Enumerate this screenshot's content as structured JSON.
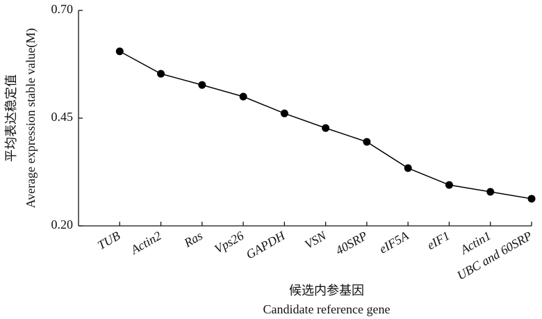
{
  "chart_data": {
    "type": "line",
    "y_label": [
      "平均表达稳定值",
      "Average expression stable value(M)"
    ],
    "x_label": [
      "候选内参基因",
      "Candidate reference gene"
    ],
    "categories": [
      "TUB",
      "Actin2",
      "Ras",
      "Vps26",
      "GAPDH",
      "VSN",
      "40SRP",
      "eIF5A",
      "eIF1",
      "Actin1",
      "UBC and 60SRP"
    ],
    "values": [
      0.605,
      0.553,
      0.527,
      0.5,
      0.461,
      0.427,
      0.395,
      0.334,
      0.295,
      0.279,
      0.263
    ],
    "color": "#000000",
    "ylim": [
      0.2,
      0.7
    ],
    "yticks": [
      {
        "value": 0.2,
        "label": "0.20"
      },
      {
        "value": 0.45,
        "label": "0.45"
      },
      {
        "value": 0.7,
        "label": "0.70"
      }
    ]
  }
}
